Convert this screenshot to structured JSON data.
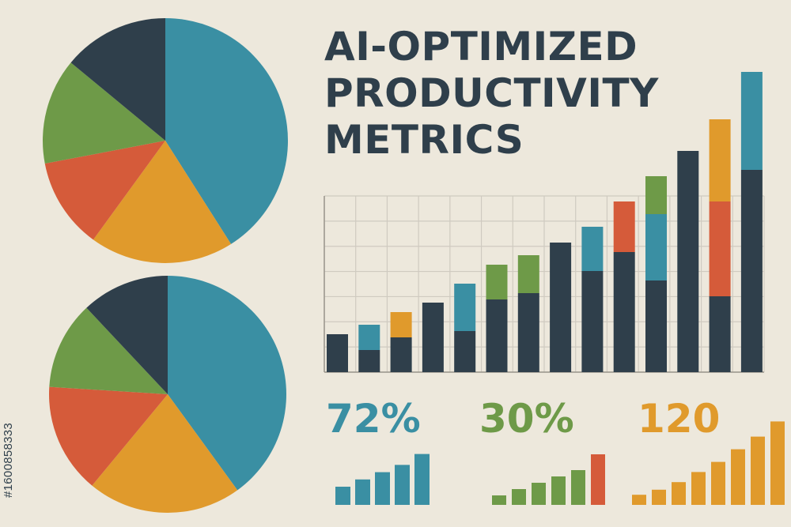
{
  "title_lines": [
    "AI-OPTIMIZED",
    "PRODUCTIVITY",
    "METRICS"
  ],
  "stock_id": "#1600858333",
  "colors": {
    "navy": "#2f3f4b",
    "teal": "#3a8fa3",
    "green": "#6e9a48",
    "red": "#d55b3a",
    "orange": "#e09a2c",
    "background": "#ede8dc",
    "grid": "#cfcac0"
  },
  "kpis": [
    {
      "label": "72%",
      "color": "#3a8fa3"
    },
    {
      "label": "30%",
      "color": "#6e9a48"
    },
    {
      "label": "120",
      "color": "#e09a2c"
    }
  ],
  "chart_data": [
    {
      "type": "pie",
      "slices": [
        {
          "color": "#3a8fa3",
          "value": 41
        },
        {
          "color": "#e09a2c",
          "value": 19
        },
        {
          "color": "#d55b3a",
          "value": 12
        },
        {
          "color": "#6e9a48",
          "value": 14
        },
        {
          "color": "#2f3f4b",
          "value": 14
        }
      ]
    },
    {
      "type": "pie",
      "slices": [
        {
          "color": "#3a8fa3",
          "value": 40
        },
        {
          "color": "#e09a2c",
          "value": 21
        },
        {
          "color": "#d55b3a",
          "value": 15
        },
        {
          "color": "#6e9a48",
          "value": 12
        },
        {
          "color": "#2f3f4b",
          "value": 12
        }
      ]
    },
    {
      "type": "bar",
      "stacked": true,
      "grid": true,
      "ylim": [
        0,
        100
      ],
      "bars": [
        [
          {
            "color": "#2f3f4b",
            "value": 12
          }
        ],
        [
          {
            "color": "#2f3f4b",
            "value": 7
          },
          {
            "color": "#3a8fa3",
            "value": 8
          }
        ],
        [
          {
            "color": "#2f3f4b",
            "value": 11
          },
          {
            "color": "#e09a2c",
            "value": 8
          }
        ],
        [
          {
            "color": "#2f3f4b",
            "value": 22
          }
        ],
        [
          {
            "color": "#2f3f4b",
            "value": 13
          },
          {
            "color": "#3a8fa3",
            "value": 15
          }
        ],
        [
          {
            "color": "#2f3f4b",
            "value": 23
          },
          {
            "color": "#6e9a48",
            "value": 11
          }
        ],
        [
          {
            "color": "#2f3f4b",
            "value": 25
          },
          {
            "color": "#6e9a48",
            "value": 12
          }
        ],
        [
          {
            "color": "#2f3f4b",
            "value": 41
          }
        ],
        [
          {
            "color": "#2f3f4b",
            "value": 32
          },
          {
            "color": "#3a8fa3",
            "value": 14
          }
        ],
        [
          {
            "color": "#2f3f4b",
            "value": 38
          },
          {
            "color": "#d55b3a",
            "value": 16
          }
        ],
        [
          {
            "color": "#2f3f4b",
            "value": 29
          },
          {
            "color": "#3a8fa3",
            "value": 21
          },
          {
            "color": "#6e9a48",
            "value": 12
          }
        ],
        [
          {
            "color": "#2f3f4b",
            "value": 70
          }
        ],
        [
          {
            "color": "#2f3f4b",
            "value": 24
          },
          {
            "color": "#d55b3a",
            "value": 30
          },
          {
            "color": "#e09a2c",
            "value": 26
          }
        ],
        [
          {
            "color": "#2f3f4b",
            "value": 64
          },
          {
            "color": "#3a8fa3",
            "value": 31
          }
        ]
      ]
    },
    {
      "type": "bar",
      "color": "#3a8fa3",
      "values": [
        10,
        14,
        18,
        22,
        28
      ]
    },
    {
      "type": "bar",
      "colors": [
        "#6e9a48",
        "#6e9a48",
        "#6e9a48",
        "#6e9a48",
        "#6e9a48",
        "#d55b3a"
      ],
      "values": [
        6,
        10,
        14,
        18,
        22,
        32
      ]
    },
    {
      "type": "bar",
      "color": "#e09a2c",
      "values": [
        8,
        12,
        18,
        26,
        34,
        44,
        54,
        66
      ]
    }
  ]
}
